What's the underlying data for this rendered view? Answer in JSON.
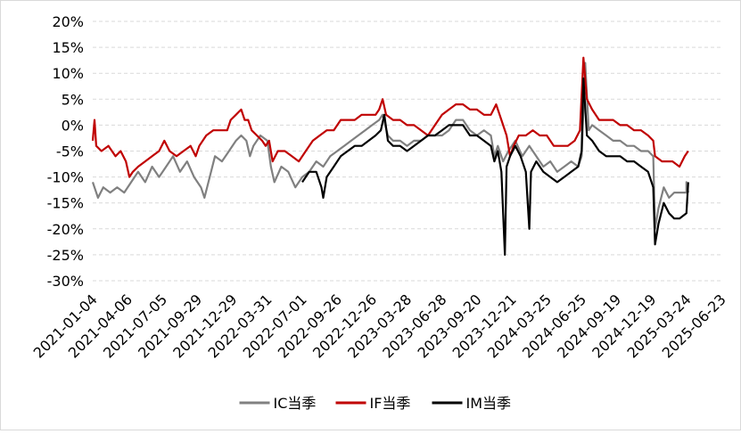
{
  "chart_data": {
    "type": "line",
    "title": "",
    "xlabel": "",
    "ylabel": "",
    "ylim": [
      -0.3,
      0.2
    ],
    "y_ticks": [
      0.2,
      0.15,
      0.1,
      0.05,
      0.0,
      -0.05,
      -0.1,
      -0.15,
      -0.2,
      -0.25,
      -0.3
    ],
    "y_tick_labels": [
      "20%",
      "15%",
      "10%",
      "5%",
      "0%",
      "-5%",
      "-10%",
      "-15%",
      "-20%",
      "-25%",
      "-30%"
    ],
    "x_tick_labels": [
      "2021-01-04",
      "2021-04-06",
      "2021-07-05",
      "2021-09-29",
      "2021-12-29",
      "2022-03-31",
      "2022-07-01",
      "2022-09-26",
      "2022-12-26",
      "2023-03-28",
      "2023-06-28",
      "2023-09-20",
      "2023-12-21",
      "2024-03-25",
      "2024-06-25",
      "2024-09-19",
      "2024-12-19",
      "2025-03-24",
      "2025-06-23"
    ],
    "x_range": [
      0,
      18
    ],
    "grid": "horizontal-dashed",
    "legend_position": "bottom-center",
    "series": [
      {
        "name": "IC当季",
        "color": "#808080",
        "points": [
          [
            0,
            -0.11
          ],
          [
            0.15,
            -0.14
          ],
          [
            0.3,
            -0.12
          ],
          [
            0.5,
            -0.13
          ],
          [
            0.7,
            -0.12
          ],
          [
            0.9,
            -0.13
          ],
          [
            1.1,
            -0.11
          ],
          [
            1.3,
            -0.09
          ],
          [
            1.5,
            -0.11
          ],
          [
            1.7,
            -0.08
          ],
          [
            1.9,
            -0.1
          ],
          [
            2.1,
            -0.08
          ],
          [
            2.3,
            -0.06
          ],
          [
            2.5,
            -0.09
          ],
          [
            2.7,
            -0.07
          ],
          [
            2.9,
            -0.1
          ],
          [
            3.1,
            -0.12
          ],
          [
            3.2,
            -0.14
          ],
          [
            3.35,
            -0.1
          ],
          [
            3.5,
            -0.06
          ],
          [
            3.7,
            -0.07
          ],
          [
            3.9,
            -0.05
          ],
          [
            4.1,
            -0.03
          ],
          [
            4.25,
            -0.02
          ],
          [
            4.4,
            -0.03
          ],
          [
            4.5,
            -0.06
          ],
          [
            4.6,
            -0.04
          ],
          [
            4.8,
            -0.02
          ],
          [
            5.0,
            -0.03
          ],
          [
            5.1,
            -0.08
          ],
          [
            5.2,
            -0.11
          ],
          [
            5.4,
            -0.08
          ],
          [
            5.6,
            -0.09
          ],
          [
            5.8,
            -0.12
          ],
          [
            6.0,
            -0.1
          ],
          [
            6.2,
            -0.09
          ],
          [
            6.4,
            -0.07
          ],
          [
            6.6,
            -0.08
          ],
          [
            6.8,
            -0.06
          ],
          [
            7.0,
            -0.05
          ],
          [
            7.2,
            -0.04
          ],
          [
            7.4,
            -0.03
          ],
          [
            7.6,
            -0.02
          ],
          [
            7.8,
            -0.01
          ],
          [
            8.0,
            0.0
          ],
          [
            8.2,
            0.01
          ],
          [
            8.3,
            0.02
          ],
          [
            8.45,
            -0.02
          ],
          [
            8.6,
            -0.03
          ],
          [
            8.8,
            -0.03
          ],
          [
            9.0,
            -0.04
          ],
          [
            9.2,
            -0.03
          ],
          [
            9.4,
            -0.03
          ],
          [
            9.6,
            -0.02
          ],
          [
            9.8,
            -0.02
          ],
          [
            10.0,
            -0.02
          ],
          [
            10.2,
            -0.01
          ],
          [
            10.4,
            0.01
          ],
          [
            10.6,
            0.01
          ],
          [
            10.8,
            -0.01
          ],
          [
            11.0,
            -0.02
          ],
          [
            11.2,
            -0.01
          ],
          [
            11.4,
            -0.02
          ],
          [
            11.5,
            -0.06
          ],
          [
            11.6,
            -0.04
          ],
          [
            11.75,
            -0.07
          ],
          [
            11.9,
            -0.05
          ],
          [
            12.1,
            -0.03
          ],
          [
            12.3,
            -0.06
          ],
          [
            12.5,
            -0.04
          ],
          [
            12.7,
            -0.06
          ],
          [
            12.9,
            -0.08
          ],
          [
            13.1,
            -0.07
          ],
          [
            13.3,
            -0.09
          ],
          [
            13.5,
            -0.08
          ],
          [
            13.7,
            -0.07
          ],
          [
            13.9,
            -0.08
          ],
          [
            14.0,
            -0.06
          ],
          [
            14.1,
            0.12
          ],
          [
            14.2,
            -0.01
          ],
          [
            14.3,
            0.0
          ],
          [
            14.5,
            -0.01
          ],
          [
            14.7,
            -0.02
          ],
          [
            14.9,
            -0.03
          ],
          [
            15.1,
            -0.03
          ],
          [
            15.3,
            -0.04
          ],
          [
            15.5,
            -0.04
          ],
          [
            15.7,
            -0.05
          ],
          [
            15.9,
            -0.05
          ],
          [
            16.05,
            -0.06
          ],
          [
            16.1,
            -0.2
          ],
          [
            16.2,
            -0.16
          ],
          [
            16.35,
            -0.12
          ],
          [
            16.5,
            -0.14
          ],
          [
            16.65,
            -0.13
          ],
          [
            16.8,
            -0.13
          ],
          [
            17.0,
            -0.13
          ],
          [
            17.0,
            -0.11
          ],
          [
            17.05,
            -0.13
          ]
        ]
      },
      {
        "name": "IF当季",
        "color": "#c00000",
        "points": [
          [
            0,
            -0.03
          ],
          [
            0.05,
            0.01
          ],
          [
            0.1,
            -0.04
          ],
          [
            0.25,
            -0.05
          ],
          [
            0.45,
            -0.04
          ],
          [
            0.65,
            -0.06
          ],
          [
            0.8,
            -0.05
          ],
          [
            0.95,
            -0.07
          ],
          [
            1.05,
            -0.1
          ],
          [
            1.15,
            -0.09
          ],
          [
            1.3,
            -0.08
          ],
          [
            1.5,
            -0.07
          ],
          [
            1.7,
            -0.06
          ],
          [
            1.9,
            -0.05
          ],
          [
            2.05,
            -0.03
          ],
          [
            2.2,
            -0.05
          ],
          [
            2.4,
            -0.06
          ],
          [
            2.6,
            -0.05
          ],
          [
            2.8,
            -0.04
          ],
          [
            2.95,
            -0.06
          ],
          [
            3.05,
            -0.04
          ],
          [
            3.25,
            -0.02
          ],
          [
            3.45,
            -0.01
          ],
          [
            3.65,
            -0.01
          ],
          [
            3.85,
            -0.01
          ],
          [
            3.95,
            0.01
          ],
          [
            4.1,
            0.02
          ],
          [
            4.25,
            0.03
          ],
          [
            4.35,
            0.01
          ],
          [
            4.45,
            0.01
          ],
          [
            4.55,
            -0.01
          ],
          [
            4.7,
            -0.02
          ],
          [
            4.85,
            -0.03
          ],
          [
            4.95,
            -0.04
          ],
          [
            5.05,
            -0.03
          ],
          [
            5.15,
            -0.07
          ],
          [
            5.3,
            -0.05
          ],
          [
            5.5,
            -0.05
          ],
          [
            5.7,
            -0.06
          ],
          [
            5.9,
            -0.07
          ],
          [
            6.1,
            -0.05
          ],
          [
            6.3,
            -0.03
          ],
          [
            6.5,
            -0.02
          ],
          [
            6.7,
            -0.01
          ],
          [
            6.9,
            -0.01
          ],
          [
            7.1,
            0.01
          ],
          [
            7.3,
            0.01
          ],
          [
            7.5,
            0.01
          ],
          [
            7.7,
            0.02
          ],
          [
            7.9,
            0.02
          ],
          [
            8.1,
            0.02
          ],
          [
            8.2,
            0.03
          ],
          [
            8.3,
            0.05
          ],
          [
            8.4,
            0.02
          ],
          [
            8.6,
            0.01
          ],
          [
            8.8,
            0.01
          ],
          [
            9.0,
            0.0
          ],
          [
            9.2,
            0.0
          ],
          [
            9.4,
            -0.01
          ],
          [
            9.6,
            -0.02
          ],
          [
            9.8,
            0.0
          ],
          [
            10.0,
            0.02
          ],
          [
            10.2,
            0.03
          ],
          [
            10.4,
            0.04
          ],
          [
            10.6,
            0.04
          ],
          [
            10.8,
            0.03
          ],
          [
            11.0,
            0.03
          ],
          [
            11.2,
            0.02
          ],
          [
            11.4,
            0.02
          ],
          [
            11.55,
            0.04
          ],
          [
            11.7,
            0.01
          ],
          [
            11.85,
            -0.02
          ],
          [
            11.95,
            -0.06
          ],
          [
            12.05,
            -0.04
          ],
          [
            12.2,
            -0.02
          ],
          [
            12.4,
            -0.02
          ],
          [
            12.6,
            -0.01
          ],
          [
            12.8,
            -0.02
          ],
          [
            13.0,
            -0.02
          ],
          [
            13.2,
            -0.04
          ],
          [
            13.4,
            -0.04
          ],
          [
            13.6,
            -0.04
          ],
          [
            13.8,
            -0.03
          ],
          [
            13.95,
            -0.01
          ],
          [
            14.05,
            0.13
          ],
          [
            14.15,
            0.05
          ],
          [
            14.3,
            0.03
          ],
          [
            14.5,
            0.01
          ],
          [
            14.7,
            0.01
          ],
          [
            14.9,
            0.01
          ],
          [
            15.1,
            0.0
          ],
          [
            15.3,
            0.0
          ],
          [
            15.5,
            -0.01
          ],
          [
            15.7,
            -0.01
          ],
          [
            15.9,
            -0.02
          ],
          [
            16.05,
            -0.03
          ],
          [
            16.1,
            -0.06
          ],
          [
            16.3,
            -0.07
          ],
          [
            16.6,
            -0.07
          ],
          [
            16.8,
            -0.08
          ],
          [
            16.95,
            -0.06
          ],
          [
            17.05,
            -0.05
          ]
        ]
      },
      {
        "name": "IM当季",
        "color": "#000000",
        "points": [
          [
            6.0,
            -0.11
          ],
          [
            6.2,
            -0.09
          ],
          [
            6.4,
            -0.09
          ],
          [
            6.55,
            -0.12
          ],
          [
            6.6,
            -0.14
          ],
          [
            6.7,
            -0.1
          ],
          [
            6.9,
            -0.08
          ],
          [
            7.1,
            -0.06
          ],
          [
            7.3,
            -0.05
          ],
          [
            7.5,
            -0.04
          ],
          [
            7.7,
            -0.04
          ],
          [
            7.9,
            -0.03
          ],
          [
            8.1,
            -0.02
          ],
          [
            8.25,
            -0.01
          ],
          [
            8.35,
            0.02
          ],
          [
            8.45,
            -0.03
          ],
          [
            8.6,
            -0.04
          ],
          [
            8.8,
            -0.04
          ],
          [
            9.0,
            -0.05
          ],
          [
            9.2,
            -0.04
          ],
          [
            9.4,
            -0.03
          ],
          [
            9.6,
            -0.02
          ],
          [
            9.8,
            -0.02
          ],
          [
            10.0,
            -0.01
          ],
          [
            10.2,
            0.0
          ],
          [
            10.4,
            0.0
          ],
          [
            10.6,
            0.0
          ],
          [
            10.8,
            -0.02
          ],
          [
            11.0,
            -0.02
          ],
          [
            11.2,
            -0.03
          ],
          [
            11.4,
            -0.04
          ],
          [
            11.5,
            -0.07
          ],
          [
            11.6,
            -0.05
          ],
          [
            11.7,
            -0.09
          ],
          [
            11.8,
            -0.25
          ],
          [
            11.85,
            -0.08
          ],
          [
            11.95,
            -0.06
          ],
          [
            12.1,
            -0.04
          ],
          [
            12.25,
            -0.06
          ],
          [
            12.4,
            -0.09
          ],
          [
            12.5,
            -0.2
          ],
          [
            12.55,
            -0.09
          ],
          [
            12.7,
            -0.07
          ],
          [
            12.9,
            -0.09
          ],
          [
            13.1,
            -0.1
          ],
          [
            13.3,
            -0.11
          ],
          [
            13.5,
            -0.1
          ],
          [
            13.7,
            -0.09
          ],
          [
            13.9,
            -0.08
          ],
          [
            14.0,
            -0.05
          ],
          [
            14.05,
            0.09
          ],
          [
            14.15,
            -0.02
          ],
          [
            14.3,
            -0.03
          ],
          [
            14.5,
            -0.05
          ],
          [
            14.7,
            -0.06
          ],
          [
            14.9,
            -0.06
          ],
          [
            15.1,
            -0.06
          ],
          [
            15.3,
            -0.07
          ],
          [
            15.5,
            -0.07
          ],
          [
            15.7,
            -0.08
          ],
          [
            15.9,
            -0.09
          ],
          [
            16.05,
            -0.12
          ],
          [
            16.1,
            -0.23
          ],
          [
            16.2,
            -0.19
          ],
          [
            16.35,
            -0.15
          ],
          [
            16.5,
            -0.17
          ],
          [
            16.65,
            -0.18
          ],
          [
            16.8,
            -0.18
          ],
          [
            17.0,
            -0.17
          ],
          [
            17.05,
            -0.11
          ]
        ]
      }
    ]
  }
}
